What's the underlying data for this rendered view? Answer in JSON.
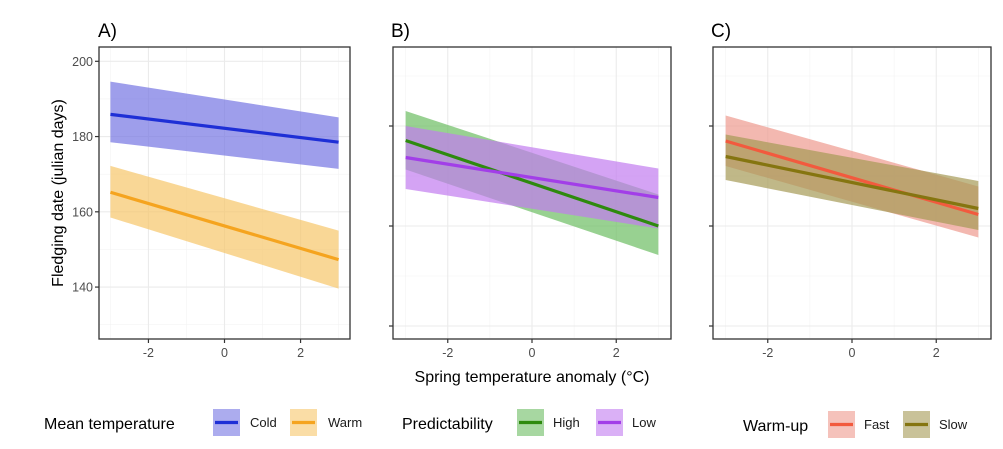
{
  "chart_data": {
    "type": "line",
    "xlabel": "Spring temperature anomaly (°C)",
    "ylabel": "Fledging date (julian days)",
    "panels": [
      {
        "id": "A",
        "title": "A)",
        "xlim": [
          -3.3,
          3.3
        ],
        "ylim": [
          126.2,
          203.8
        ],
        "x_ticks": [
          -2,
          0,
          2
        ],
        "x_tick_labels": [
          "-2",
          "0",
          "2"
        ],
        "y_ticks": [
          140,
          160,
          180,
          200
        ],
        "y_tick_labels": [
          "140",
          "160",
          "180",
          "200"
        ],
        "y_minor": [
          130,
          150,
          170,
          190
        ],
        "x_minor": [
          -3,
          -1,
          1,
          3
        ],
        "show_y_labels": true,
        "legend": {
          "title": "Mean temperature",
          "entries": [
            "Cold",
            "Warm"
          ]
        },
        "series": [
          {
            "name": "Cold",
            "line_color": "#1e2fd6",
            "band_color": "#7575e3",
            "x": [
              -3,
              3
            ],
            "fit": [
              185.9,
              178.5
            ],
            "lower": [
              178.5,
              171.4
            ],
            "upper": [
              194.6,
              185.1
            ]
          },
          {
            "name": "Warm",
            "line_color": "#f5a41f",
            "band_color": "#f7c66a",
            "x": [
              -3,
              3
            ],
            "fit": [
              165.2,
              147.3
            ],
            "lower": [
              158.5,
              139.6
            ],
            "upper": [
              172.2,
              155.0
            ]
          }
        ]
      },
      {
        "id": "B",
        "title": "B)",
        "xlim": [
          -3.3,
          3.3
        ],
        "ylim": [
          137.4,
          195.8
        ],
        "x_ticks": [
          -2,
          0,
          2
        ],
        "x_tick_labels": [
          "-2",
          "0",
          "2"
        ],
        "y_ticks": [
          140,
          160,
          180
        ],
        "y_tick_labels": [
          "",
          "",
          ""
        ],
        "y_minor": [
          150,
          170,
          190
        ],
        "x_minor": [
          -3,
          -1,
          1,
          3
        ],
        "show_y_labels": false,
        "legend": {
          "title": "Predictability",
          "entries": [
            "High",
            "Low"
          ]
        },
        "series": [
          {
            "name": "High",
            "line_color": "#2e8a0e",
            "band_color": "#6cbd62",
            "x": [
              -3,
              3
            ],
            "fit": [
              177.1,
              160.0
            ],
            "lower": [
              171.3,
              154.2
            ],
            "upper": [
              183.0,
              166.3
            ]
          },
          {
            "name": "Low",
            "line_color": "#a23ee8",
            "band_color": "#c27cf0",
            "x": [
              -3,
              3
            ],
            "fit": [
              173.7,
              165.7
            ],
            "lower": [
              167.4,
              159.5
            ],
            "upper": [
              180.0,
              171.5
            ]
          }
        ]
      },
      {
        "id": "C",
        "title": "C)",
        "xlim": [
          -3.3,
          3.3
        ],
        "ylim": [
          137.4,
          195.8
        ],
        "x_ticks": [
          -2,
          0,
          2
        ],
        "x_tick_labels": [
          "-2",
          "0",
          "2"
        ],
        "y_ticks": [
          140,
          160,
          180
        ],
        "y_tick_labels": [
          "",
          "",
          ""
        ],
        "y_minor": [
          150,
          170,
          190
        ],
        "x_minor": [
          -3,
          -1,
          1,
          3
        ],
        "show_y_labels": false,
        "legend": {
          "title": "Warm-up",
          "entries": [
            "Fast",
            "Slow"
          ]
        },
        "series": [
          {
            "name": "Fast",
            "line_color": "#f25a3e",
            "band_color": "#ee9a8e",
            "x": [
              -3,
              3
            ],
            "fit": [
              177.0,
              162.3
            ],
            "lower": [
              172.0,
              157.7
            ],
            "upper": [
              182.1,
              167.9
            ]
          },
          {
            "name": "Slow",
            "line_color": "#857510",
            "band_color": "#a59a55",
            "x": [
              -3,
              3
            ],
            "fit": [
              173.9,
              163.5
            ],
            "lower": [
              169.2,
              159.2
            ],
            "upper": [
              178.3,
              169.0
            ]
          }
        ]
      }
    ]
  }
}
